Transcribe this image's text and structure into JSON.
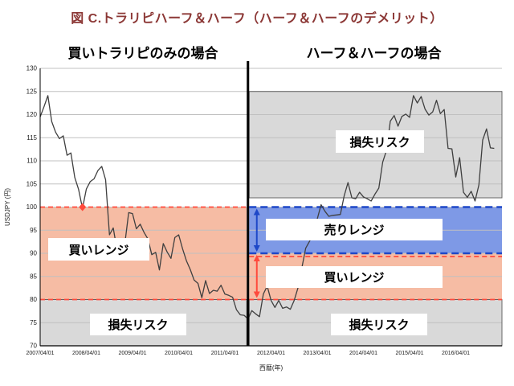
{
  "title": "図 C.トラリピハーフ＆ハーフ（ハーフ＆ハーフのデメリット）",
  "headers": {
    "left": "買いトラリピのみの場合",
    "right": "ハーフ＆ハーフの場合"
  },
  "axis": {
    "y_label": "USDJPY (円)",
    "x_label": "西暦(年)",
    "y_ticks": [
      130,
      125,
      120,
      115,
      110,
      105,
      100,
      95,
      90,
      85,
      80,
      75,
      70
    ],
    "x_tick_months": [
      0,
      12,
      24,
      36,
      48,
      60,
      72,
      84,
      96,
      108
    ],
    "x_tick_labels": [
      "2007/04/01",
      "2008/04/01",
      "2009/04/01",
      "2010/04/01",
      "2011/04/01",
      "2012/04/01",
      "2013/04/01",
      "2014/04/01",
      "2015/04/01",
      "2016/04/01"
    ]
  },
  "colors": {
    "salmon": "#F6BCA4",
    "salmon_line": "#FF4A3C",
    "blue": "#7E99E6",
    "blue_line": "#1E48C8",
    "gray": "#D9D9D9",
    "gray_border": "#595959",
    "price_line": "#3F3F3F",
    "grid": "#C0C0C0",
    "axis": "#000000",
    "title": "#8C3836"
  },
  "chart_data": {
    "type": "line",
    "title": "図 C.トラリピハーフ＆ハーフ（ハーフ＆ハーフのデメリット）",
    "xlabel": "西暦(年)",
    "ylabel": "USDJPY (円)",
    "ylim": [
      70,
      130
    ],
    "x_start": "2007/04",
    "x_end": "2017/02",
    "x_interval": "monthly",
    "divider_month": 54,
    "values": [
      119.5,
      121.7,
      124.1,
      118.5,
      116.2,
      114.8,
      115.4,
      111.2,
      111.7,
      106.4,
      103.8,
      99.7,
      103.9,
      105.5,
      106.1,
      107.9,
      108.8,
      105.9,
      94.0,
      95.5,
      90.6,
      89.9,
      92.0,
      98.8,
      98.6,
      95.3,
      96.3,
      94.5,
      93.1,
      89.7,
      90.2,
      86.4,
      92.1,
      90.3,
      88.9,
      93.4,
      94.0,
      91.0,
      88.4,
      86.5,
      84.2,
      83.5,
      80.4,
      84.1,
      81.3,
      82.0,
      81.8,
      83.1,
      81.2,
      80.9,
      80.5,
      77.8,
      76.7,
      76.6,
      75.8,
      77.6,
      76.9,
      76.3,
      81.2,
      82.9,
      79.8,
      78.3,
      79.8,
      78.1,
      78.4,
      77.9,
      79.8,
      82.5,
      86.8,
      91.1,
      92.6,
      94.2,
      97.4,
      100.5,
      99.1,
      98.0,
      98.2,
      98.3,
      98.4,
      102.4,
      105.3,
      102.0,
      101.8,
      103.2,
      102.2,
      101.8,
      101.3,
      102.8,
      104.1,
      109.7,
      112.3,
      118.6,
      119.8,
      117.5,
      119.6,
      120.1,
      119.4,
      124.1,
      122.5,
      123.9,
      121.2,
      119.9,
      120.6,
      123.1,
      120.2,
      121.1,
      112.7,
      112.6,
      106.5,
      110.7,
      103.2,
      102.1,
      103.4,
      101.3,
      104.8,
      114.5,
      116.9,
      112.8,
      112.7
    ],
    "zones": [
      {
        "id": "left-buy",
        "label": "買いレンジ",
        "side": "left",
        "range": [
          80,
          100
        ],
        "color_key": "salmon"
      },
      {
        "id": "left-loss",
        "label": "損失リスク",
        "side": "left",
        "range": [
          70,
          80
        ],
        "color_key": "gray"
      },
      {
        "id": "right-loss-top",
        "label": "損失リスク",
        "side": "right",
        "range": [
          102,
          125
        ],
        "color_key": "gray"
      },
      {
        "id": "right-sell",
        "label": "売りレンジ",
        "side": "right",
        "range": [
          90,
          100
        ],
        "color_key": "blue"
      },
      {
        "id": "right-buy",
        "label": "買いレンジ",
        "side": "right",
        "range": [
          80,
          90
        ],
        "color_key": "salmon"
      },
      {
        "id": "right-loss-bottom",
        "label": "損失リスク",
        "side": "right",
        "range": [
          70,
          80
        ],
        "color_key": "gray"
      }
    ],
    "dashed_lines": [
      {
        "side": "left",
        "value": 100,
        "color_key": "salmon_line"
      },
      {
        "side": "left",
        "value": 80,
        "color_key": "salmon_line"
      },
      {
        "side": "right",
        "value": 100,
        "color_key": "blue_line"
      },
      {
        "side": "right",
        "value": 90,
        "color_key": "blue_line"
      },
      {
        "side": "right",
        "value": 89.3,
        "color_key": "salmon_line"
      },
      {
        "side": "right",
        "value": 80,
        "color_key": "salmon_line"
      }
    ],
    "annotations": {
      "sell_range_arrow": {
        "top": 100,
        "bottom": 90,
        "color_key": "blue_line"
      },
      "buy_range_arrow": {
        "top": 90,
        "bottom": 80,
        "color_key": "salmon_line"
      },
      "touch_100_marker": {
        "month": 11,
        "value": 100,
        "color_key": "salmon_line"
      }
    }
  }
}
